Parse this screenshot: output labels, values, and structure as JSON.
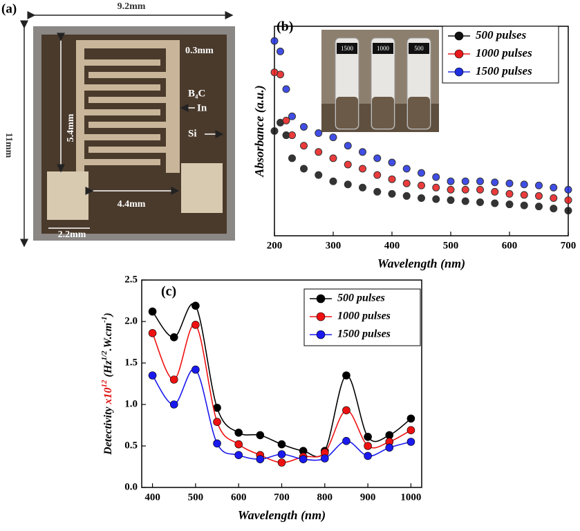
{
  "panel_a": {
    "label": "(a)",
    "width": "9.2mm",
    "height": "11mm",
    "finger_gap": "0.3mm",
    "film": "B₄C",
    "contact": "In",
    "substrate": "Si",
    "finger_length": "5.4mm",
    "pad_gap": "4.4mm",
    "pad_width": "2.2mm"
  },
  "chart_data": [
    {
      "type": "scatter",
      "label": "(b)",
      "xlabel": "Wavelength (nm)",
      "ylabel": "Absorbance (a.u.)",
      "inset_labels": [
        "1500",
        "1000",
        "500"
      ],
      "xlim": [
        200,
        700
      ],
      "xticks": [
        200,
        300,
        400,
        500,
        600,
        700
      ],
      "ylim": [
        0,
        1
      ],
      "legend": "upper right",
      "x": [
        200,
        210,
        220,
        230,
        250,
        275,
        300,
        325,
        350,
        375,
        400,
        425,
        450,
        475,
        500,
        525,
        550,
        575,
        600,
        625,
        650,
        675,
        700
      ],
      "series": [
        {
          "name": "500 pulses",
          "color": "#111111",
          "values": [
            0.5,
            0.54,
            0.48,
            0.37,
            0.32,
            0.29,
            0.26,
            0.245,
            0.23,
            0.21,
            0.2,
            0.19,
            0.18,
            0.175,
            0.17,
            0.165,
            0.16,
            0.155,
            0.15,
            0.145,
            0.14,
            0.13,
            0.12
          ]
        },
        {
          "name": "1000 pulses",
          "color": "#e8191a",
          "values": [
            0.78,
            0.77,
            0.55,
            0.48,
            0.43,
            0.4,
            0.37,
            0.34,
            0.32,
            0.29,
            0.27,
            0.25,
            0.24,
            0.23,
            0.22,
            0.22,
            0.22,
            0.21,
            0.2,
            0.195,
            0.19,
            0.18,
            0.17
          ]
        },
        {
          "name": "1500 pulses",
          "color": "#1f2fe0",
          "values": [
            0.93,
            0.88,
            0.7,
            0.57,
            0.52,
            0.49,
            0.47,
            0.43,
            0.4,
            0.37,
            0.35,
            0.32,
            0.3,
            0.28,
            0.26,
            0.26,
            0.26,
            0.255,
            0.25,
            0.245,
            0.24,
            0.23,
            0.22
          ]
        }
      ]
    },
    {
      "type": "line",
      "label": "(c)",
      "xlabel": "Wavelength (nm)",
      "ylabel": [
        "Detectivity ",
        "x10",
        "12",
        " (Hz",
        "1/2",
        ".W.cm",
        "-1",
        ")"
      ],
      "xlim": [
        375,
        1025
      ],
      "xticks": [
        400,
        500,
        600,
        700,
        800,
        900,
        1000
      ],
      "ylim": [
        0,
        2.5
      ],
      "yticks": [
        {
          "value": 0,
          "label": "0.0"
        },
        0.5,
        {
          "value": 1,
          "label": "1.0"
        },
        1.5,
        {
          "value": 2,
          "label": "2.0"
        },
        2.5
      ],
      "legend": "upper right",
      "x": [
        400,
        450,
        500,
        550,
        600,
        650,
        700,
        750,
        800,
        850,
        900,
        950,
        1000
      ],
      "series": [
        {
          "name": "500 pulses",
          "color": "#000000",
          "values": [
            2.12,
            1.81,
            2.19,
            0.96,
            0.66,
            0.63,
            0.52,
            0.44,
            0.44,
            1.35,
            0.61,
            0.63,
            0.83
          ]
        },
        {
          "name": "1000 pulses",
          "color": "#ee1111",
          "values": [
            1.86,
            1.3,
            1.96,
            0.79,
            0.52,
            0.39,
            0.3,
            0.37,
            0.42,
            0.93,
            0.5,
            0.55,
            0.69
          ]
        },
        {
          "name": "1500 pulses",
          "color": "#1a1aee",
          "values": [
            1.35,
            1.0,
            1.42,
            0.53,
            0.39,
            0.34,
            0.4,
            0.34,
            0.35,
            0.56,
            0.38,
            0.48,
            0.55
          ]
        }
      ]
    }
  ]
}
